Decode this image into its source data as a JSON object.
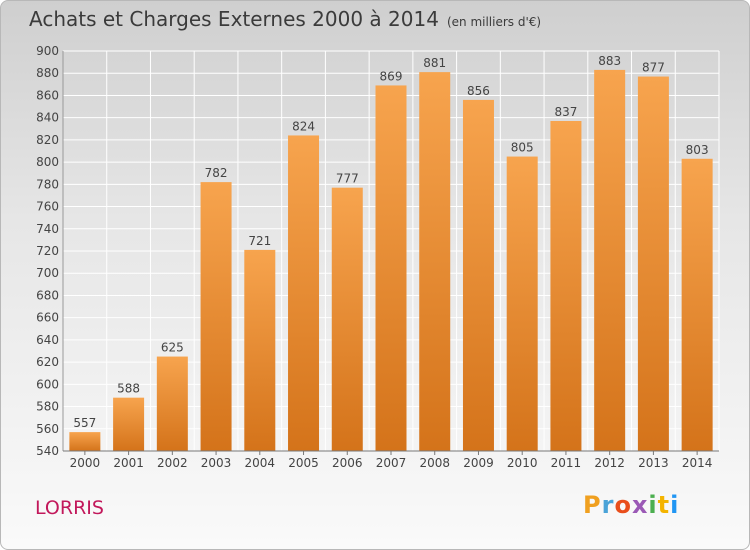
{
  "header": {
    "title": "Achats et Charges Externes 2000 à 2014",
    "unit": "(en milliers d'€)"
  },
  "place": "LORRIS",
  "logo": "Proxiti",
  "colors": {
    "bar_top": "#f7a44e",
    "bar_bottom": "#d4731a",
    "place_text": "#c2185b"
  },
  "chart_data": {
    "type": "bar",
    "title": "Achats et Charges Externes 2000 à 2014",
    "subtitle": "(en milliers d'€)",
    "categories": [
      "2000",
      "2001",
      "2002",
      "2003",
      "2004",
      "2005",
      "2006",
      "2007",
      "2008",
      "2009",
      "2010",
      "2011",
      "2012",
      "2013",
      "2014"
    ],
    "values": [
      557,
      588,
      625,
      782,
      721,
      824,
      777,
      869,
      881,
      856,
      805,
      837,
      883,
      877,
      803
    ],
    "ylim": [
      540,
      900
    ],
    "yticks": [
      540,
      560,
      580,
      600,
      620,
      640,
      660,
      680,
      700,
      720,
      740,
      760,
      780,
      800,
      820,
      840,
      860,
      880,
      900
    ],
    "grid": true,
    "data_labels": true
  }
}
